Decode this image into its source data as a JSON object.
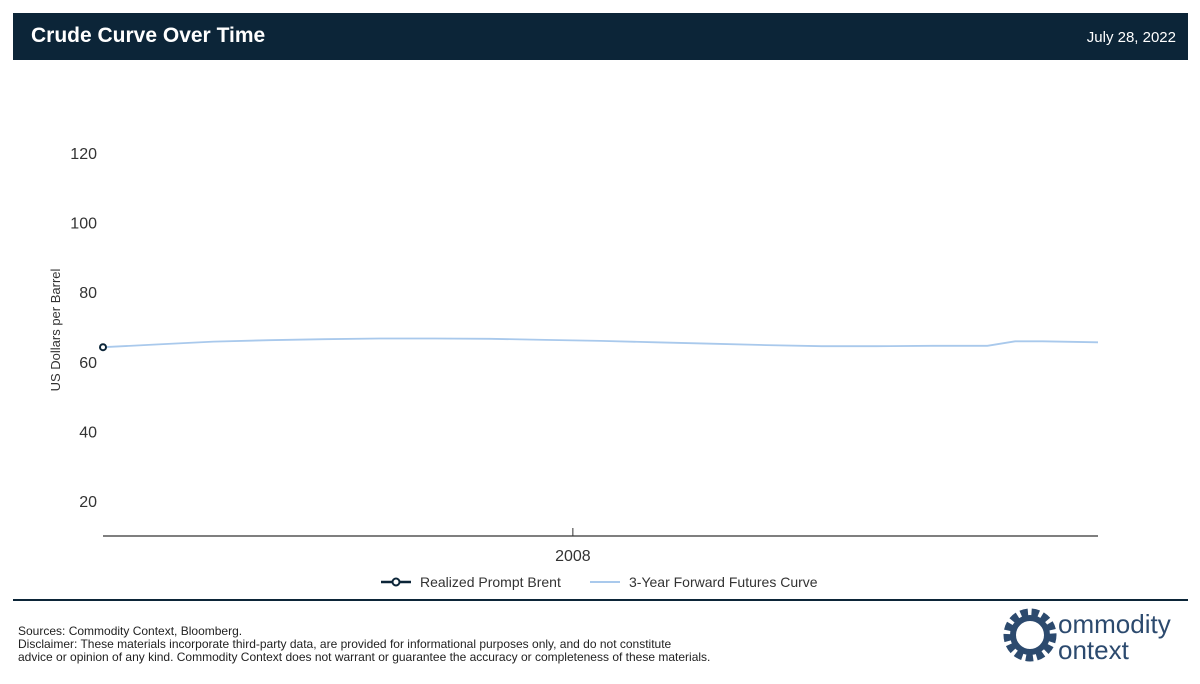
{
  "header": {
    "title": "Crude Curve Over Time",
    "date": "July 28, 2022"
  },
  "colors": {
    "header_bg": "#0c2538",
    "realized": "#0c2538",
    "forward": "#a9c9ec",
    "logo": "#2c4a6e"
  },
  "chart_data": {
    "type": "line",
    "title": "",
    "xlabel": "",
    "ylabel": "US Dollars per Barrel",
    "ylim": [
      10,
      130
    ],
    "yticks": [
      20,
      40,
      60,
      80,
      100,
      120
    ],
    "xlim": [
      "2006-08",
      "2009-08"
    ],
    "xticks": [
      {
        "x": "2008-01",
        "label": "2008"
      }
    ],
    "grid": false,
    "legend_position": "bottom",
    "series": [
      {
        "name": "Realized Prompt Brent",
        "style": "line-with-markers",
        "x": [
          "2006-08"
        ],
        "values": [
          64.2
        ]
      },
      {
        "name": "3-Year Forward Futures Curve",
        "style": "line",
        "x": [
          "2006-08",
          "2006-10",
          "2006-12",
          "2007-02",
          "2007-04",
          "2007-06",
          "2007-08",
          "2007-10",
          "2007-12",
          "2008-02",
          "2008-04",
          "2008-06",
          "2008-08",
          "2008-10",
          "2008-12",
          "2009-02",
          "2009-04",
          "2009-05",
          "2009-06",
          "2009-08"
        ],
        "values": [
          64.2,
          65.0,
          65.8,
          66.2,
          66.5,
          66.7,
          66.7,
          66.6,
          66.3,
          66.0,
          65.6,
          65.2,
          64.8,
          64.5,
          64.5,
          64.6,
          64.6,
          65.9,
          65.9,
          65.6
        ]
      }
    ]
  },
  "footer": {
    "sources": "Sources: Commodity Context, Bloomberg.",
    "disclaimer_line1": "Disclaimer: These materials incorporate third-party data, are provided for informational purposes only, and do not constitute",
    "disclaimer_line2": "advice or opinion of any kind. Commodity Context does not warrant or guarantee the accuracy or completeness of these materials."
  },
  "logo": {
    "line1": "ommodity",
    "line2": "ontext"
  }
}
